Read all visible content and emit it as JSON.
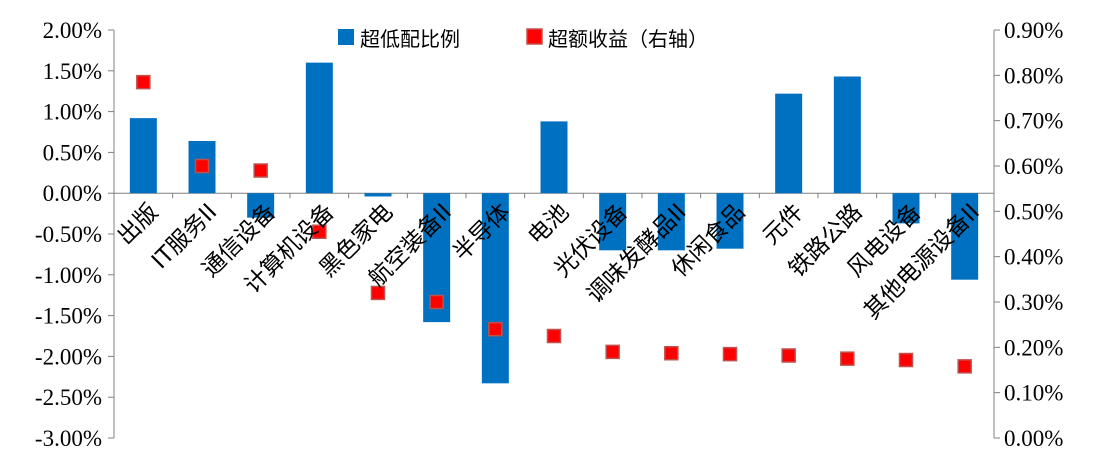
{
  "chart_data": {
    "type": "bar",
    "categories": [
      "出版",
      "IT服务II",
      "通信设备",
      "计算机设备",
      "黑色家电",
      "航空装备II",
      "半导体",
      "电池",
      "光伏设备",
      "调味发酵品II",
      "休闲食品",
      "元件",
      "铁路公路",
      "风电设备",
      "其他电源设备II"
    ],
    "series": [
      {
        "name": "超低配比例",
        "type": "bar",
        "axis": "left",
        "color": "#0070C0",
        "values": [
          0.92,
          0.64,
          -0.3,
          1.6,
          -0.04,
          -1.58,
          -2.33,
          0.88,
          -0.7,
          -0.7,
          -0.68,
          1.22,
          1.43,
          -0.37,
          -1.06
        ]
      },
      {
        "name": "超额收益（右轴）",
        "type": "marker",
        "axis": "right",
        "color": "#FF0000",
        "edge_color": "#C0504D",
        "values": [
          0.785,
          0.6,
          0.59,
          0.455,
          0.32,
          0.3,
          0.24,
          0.225,
          0.19,
          0.187,
          0.185,
          0.182,
          0.175,
          0.172,
          0.158
        ]
      }
    ],
    "y_left": {
      "ylim": [
        -3.0,
        2.0
      ],
      "ticks": [
        2.0,
        1.5,
        1.0,
        0.5,
        0.0,
        -0.5,
        -1.0,
        -1.5,
        -2.0,
        -2.5,
        -3.0
      ],
      "tick_labels": [
        "2.00%",
        "1.50%",
        "1.00%",
        "0.50%",
        "0.00%",
        "-0.50%",
        "-1.00%",
        "-1.50%",
        "-2.00%",
        "-2.50%",
        "-3.00%"
      ]
    },
    "y_right": {
      "ylim": [
        0.0,
        0.9
      ],
      "ticks": [
        0.9,
        0.8,
        0.7,
        0.6,
        0.5,
        0.4,
        0.3,
        0.2,
        0.1,
        0.0
      ],
      "tick_labels": [
        "0.90%",
        "0.80%",
        "0.70%",
        "0.60%",
        "0.50%",
        "0.40%",
        "0.30%",
        "0.20%",
        "0.10%",
        "0.00%"
      ]
    },
    "grid": false,
    "legend": "top-center"
  }
}
